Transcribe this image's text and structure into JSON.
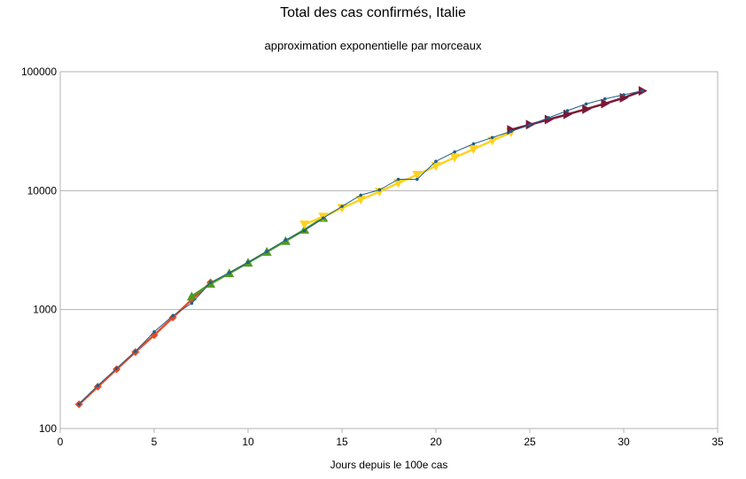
{
  "chart_data": {
    "type": "line",
    "title": "Total des cas confirmés, Italie",
    "subtitle": "approximation exponentielle par morceaux",
    "xlabel": "Jours depuis le 100e cas",
    "ylabel": "",
    "x_scale": "linear",
    "y_scale": "log",
    "xlim": [
      0,
      35
    ],
    "ylim": [
      100,
      100000
    ],
    "x_ticks": [
      0,
      5,
      10,
      15,
      20,
      25,
      30,
      35
    ],
    "y_ticks": [
      100,
      1000,
      10000,
      100000
    ],
    "x_tick_labels": [
      "0",
      "5",
      "10",
      "15",
      "20",
      "25",
      "30",
      "35"
    ],
    "y_tick_labels": [
      "100",
      "1000",
      "10000",
      "100000"
    ],
    "grid": "horizontal",
    "legend": "none",
    "series": [
      {
        "color": "#1f5f8b",
        "marker": "dot",
        "x": [
          1,
          2,
          3,
          4,
          5,
          6,
          7,
          8,
          9,
          10,
          11,
          12,
          13,
          14,
          15,
          16,
          17,
          18,
          19,
          20,
          21,
          22,
          23,
          24,
          25,
          26,
          27,
          28,
          29,
          30,
          31
        ],
        "y": [
          160,
          230,
          320,
          445,
          650,
          890,
          1130,
          1690,
          2040,
          2500,
          3080,
          3850,
          4630,
          5880,
          7370,
          9170,
          10150,
          12460,
          12460,
          17660,
          21160,
          24750,
          27980,
          31510,
          35710,
          41030,
          47020,
          53580,
          59140,
          63930,
          69180
        ]
      },
      {
        "color": "#e84a25",
        "marker": "diamond",
        "x": [
          1,
          2,
          3,
          4,
          5,
          6,
          7,
          8
        ],
        "y": [
          160,
          225,
          315,
          440,
          610,
          860,
          1210,
          1690
        ]
      },
      {
        "color": "#4f9a23",
        "marker": "triangle-up",
        "x": [
          7,
          8,
          9,
          10,
          11,
          12,
          13,
          14
        ],
        "y": [
          1290,
          1650,
          2020,
          2480,
          3060,
          3770,
          4690,
          5900
        ]
      },
      {
        "color": "#ffd21f",
        "marker": "triangle-down",
        "x": [
          13,
          14,
          15,
          16,
          17,
          18,
          19,
          20,
          21,
          22,
          23,
          24
        ],
        "y": [
          5200,
          6050,
          7150,
          8400,
          9800,
          11600,
          13600,
          16100,
          19000,
          22300,
          26300,
          31000
        ]
      },
      {
        "color": "#7b1734",
        "marker": "triangle-right",
        "x": [
          24,
          25,
          26,
          27,
          28,
          29,
          30,
          31
        ],
        "y": [
          32500,
          35900,
          39600,
          43800,
          48500,
          53900,
          60300,
          69000
        ]
      }
    ]
  }
}
